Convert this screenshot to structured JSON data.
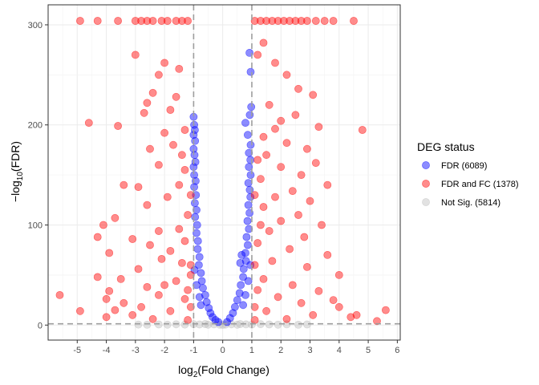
{
  "chart_data": {
    "type": "scatter",
    "title": "",
    "xlabel": {
      "base": "log",
      "sub": "2",
      "rest": "(Fold Change)"
    },
    "ylabel": {
      "pre": "−log",
      "sub": "10",
      "rest": "(FDR)"
    },
    "xlim": [
      -6.0,
      6.1
    ],
    "ylim": [
      -15,
      320
    ],
    "x_ticks": [
      "-5",
      "-4",
      "-3",
      "-2",
      "-1",
      "0",
      "1",
      "2",
      "3",
      "4",
      "5",
      "6"
    ],
    "y_ticks": [
      "0",
      "100",
      "200",
      "300"
    ],
    "grid": true,
    "reference_lines": {
      "vertical": [
        -1,
        1
      ],
      "horizontal": [
        1.3
      ]
    },
    "legend": {
      "title": "DEG status",
      "position": "right",
      "entries": [
        {
          "label": "FDR (6089)",
          "color": "#0000FF"
        },
        {
          "label": "FDR and FC (1378)",
          "color": "#FF0000"
        },
        {
          "label": "Not Sig. (5814)",
          "color": "#BEBEBE"
        }
      ]
    },
    "series": [
      {
        "name": "Not Sig. (5814)",
        "color": "#BEBEBE",
        "points": [
          [
            -2.6,
            0.3
          ],
          [
            -2.2,
            0.6
          ],
          [
            -1.9,
            0.4
          ],
          [
            -1.6,
            0.8
          ],
          [
            -1.3,
            0.5
          ],
          [
            -1.0,
            0.9
          ],
          [
            -0.8,
            0.6
          ],
          [
            -0.5,
            0.4
          ],
          [
            -0.3,
            0.7
          ],
          [
            -0.1,
            0.3
          ],
          [
            0.1,
            0.5
          ],
          [
            0.3,
            0.8
          ],
          [
            0.5,
            0.4
          ],
          [
            0.8,
            0.7
          ],
          [
            1.0,
            0.5
          ],
          [
            1.3,
            0.9
          ],
          [
            1.6,
            0.6
          ],
          [
            1.9,
            0.4
          ],
          [
            2.2,
            0.7
          ],
          [
            2.6,
            0.3
          ],
          [
            2.9,
            0.6
          ],
          [
            -2.9,
            0.5
          ],
          [
            0.0,
            0.2
          ],
          [
            -0.6,
            1.0
          ],
          [
            0.6,
            1.0
          ]
        ]
      },
      {
        "name": "FDR (6089)",
        "color": "#0000FF",
        "points": [
          [
            -1.0,
            208
          ],
          [
            -0.98,
            200
          ],
          [
            -0.96,
            195
          ],
          [
            -1.0,
            190
          ],
          [
            -0.95,
            184
          ],
          [
            -1.0,
            176
          ],
          [
            -0.97,
            170
          ],
          [
            -0.94,
            163
          ],
          [
            -1.0,
            158
          ],
          [
            -0.98,
            150
          ],
          [
            -0.93,
            144
          ],
          [
            -0.98,
            138
          ],
          [
            -0.92,
            130
          ],
          [
            -0.96,
            122
          ],
          [
            -0.9,
            115
          ],
          [
            -0.95,
            108
          ],
          [
            -0.88,
            100
          ],
          [
            -0.9,
            92
          ],
          [
            -0.85,
            84
          ],
          [
            -0.86,
            76
          ],
          [
            -0.8,
            68
          ],
          [
            -0.82,
            60
          ],
          [
            -0.75,
            52
          ],
          [
            -0.72,
            44
          ],
          [
            -0.68,
            37
          ],
          [
            -0.6,
            30
          ],
          [
            -0.55,
            23
          ],
          [
            -0.48,
            17
          ],
          [
            -0.42,
            12
          ],
          [
            -0.35,
            8
          ],
          [
            -0.25,
            5
          ],
          [
            -0.15,
            3
          ],
          [
            -0.97,
            55
          ],
          [
            -0.9,
            40
          ],
          [
            -0.8,
            28
          ],
          [
            -0.75,
            20
          ],
          [
            0.92,
            272
          ],
          [
            0.96,
            253
          ],
          [
            0.98,
            218
          ],
          [
            0.93,
            210
          ],
          [
            0.78,
            202
          ],
          [
            0.86,
            190
          ],
          [
            0.96,
            180
          ],
          [
            0.9,
            172
          ],
          [
            0.95,
            165
          ],
          [
            0.9,
            158
          ],
          [
            0.96,
            150
          ],
          [
            0.88,
            142
          ],
          [
            0.93,
            135
          ],
          [
            0.95,
            128
          ],
          [
            0.88,
            120
          ],
          [
            0.92,
            112
          ],
          [
            0.85,
            104
          ],
          [
            0.9,
            96
          ],
          [
            0.82,
            88
          ],
          [
            0.86,
            80
          ],
          [
            0.78,
            72
          ],
          [
            0.8,
            64
          ],
          [
            0.72,
            56
          ],
          [
            0.7,
            48
          ],
          [
            0.62,
            40
          ],
          [
            0.58,
            32
          ],
          [
            0.5,
            25
          ],
          [
            0.42,
            18
          ],
          [
            0.35,
            12
          ],
          [
            0.25,
            7
          ],
          [
            0.15,
            3
          ],
          [
            0.95,
            60
          ],
          [
            0.88,
            44
          ],
          [
            0.78,
            30
          ],
          [
            0.7,
            20
          ],
          [
            0.6,
            62
          ],
          [
            0.65,
            70
          ]
        ]
      },
      {
        "name": "FDR and FC (1378)",
        "color": "#FF0000",
        "points": [
          [
            -4.9,
            304
          ],
          [
            -4.3,
            304
          ],
          [
            -3.6,
            304
          ],
          [
            -3.0,
            304
          ],
          [
            -2.8,
            304
          ],
          [
            -2.6,
            304
          ],
          [
            -2.4,
            304
          ],
          [
            -2.1,
            304
          ],
          [
            -1.9,
            304
          ],
          [
            -1.6,
            304
          ],
          [
            -1.4,
            304
          ],
          [
            -1.2,
            304
          ],
          [
            1.1,
            304
          ],
          [
            1.3,
            304
          ],
          [
            1.5,
            304
          ],
          [
            1.7,
            304
          ],
          [
            1.9,
            304
          ],
          [
            2.1,
            304
          ],
          [
            2.3,
            304
          ],
          [
            2.5,
            304
          ],
          [
            2.7,
            304
          ],
          [
            2.9,
            304
          ],
          [
            3.2,
            304
          ],
          [
            3.5,
            304
          ],
          [
            3.8,
            304
          ],
          [
            4.5,
            304
          ],
          [
            -3.0,
            270
          ],
          [
            -2.0,
            262
          ],
          [
            -1.5,
            256
          ],
          [
            -2.2,
            250
          ],
          [
            -2.4,
            232
          ],
          [
            -2.6,
            222
          ],
          [
            -1.6,
            228
          ],
          [
            -1.8,
            215
          ],
          [
            -2.7,
            212
          ],
          [
            -4.6,
            202
          ],
          [
            -3.6,
            199
          ],
          [
            -2.0,
            192
          ],
          [
            -1.7,
            180
          ],
          [
            -2.5,
            176
          ],
          [
            -1.4,
            170
          ],
          [
            -2.2,
            160
          ],
          [
            -1.3,
            155
          ],
          [
            -3.4,
            140
          ],
          [
            -2.9,
            138
          ],
          [
            -1.9,
            128
          ],
          [
            -2.6,
            120
          ],
          [
            -3.7,
            107
          ],
          [
            -4.1,
            100
          ],
          [
            -4.3,
            88
          ],
          [
            -2.2,
            94
          ],
          [
            -1.5,
            96
          ],
          [
            -3.1,
            86
          ],
          [
            -2.5,
            80
          ],
          [
            -1.8,
            74
          ],
          [
            -3.9,
            72
          ],
          [
            -2.1,
            66
          ],
          [
            -1.4,
            62
          ],
          [
            -2.9,
            56
          ],
          [
            -4.3,
            48
          ],
          [
            -3.5,
            46
          ],
          [
            -1.6,
            44
          ],
          [
            -2.6,
            38
          ],
          [
            -3.9,
            34
          ],
          [
            -2.2,
            30
          ],
          [
            -1.3,
            26
          ],
          [
            -3.4,
            22
          ],
          [
            -4.0,
            26
          ],
          [
            -2.8,
            18
          ],
          [
            -1.8,
            14
          ],
          [
            -3.1,
            10
          ],
          [
            -4.0,
            8
          ],
          [
            -2.4,
            6
          ],
          [
            -1.2,
            5
          ],
          [
            -5.6,
            30
          ],
          [
            -4.9,
            14
          ],
          [
            -3.7,
            15
          ],
          [
            -2.0,
            40
          ],
          [
            -1.1,
            50
          ],
          [
            -1.3,
            84
          ],
          [
            -1.2,
            110
          ],
          [
            -1.1,
            130
          ],
          [
            -1.5,
            140
          ],
          [
            -1.3,
            195
          ],
          [
            -1.1,
            60
          ],
          [
            -1.2,
            35
          ],
          [
            -1.1,
            18
          ],
          [
            1.2,
            270
          ],
          [
            1.4,
            282
          ],
          [
            1.8,
            262
          ],
          [
            2.2,
            250
          ],
          [
            2.6,
            236
          ],
          [
            3.1,
            230
          ],
          [
            1.6,
            220
          ],
          [
            2.5,
            210
          ],
          [
            2.0,
            204
          ],
          [
            1.8,
            196
          ],
          [
            3.3,
            198
          ],
          [
            4.8,
            195
          ],
          [
            1.4,
            188
          ],
          [
            2.2,
            182
          ],
          [
            2.9,
            176
          ],
          [
            1.5,
            170
          ],
          [
            3.2,
            162
          ],
          [
            2.0,
            158
          ],
          [
            2.7,
            150
          ],
          [
            1.3,
            146
          ],
          [
            3.6,
            140
          ],
          [
            2.4,
            134
          ],
          [
            1.8,
            128
          ],
          [
            3.0,
            124
          ],
          [
            1.4,
            118
          ],
          [
            2.6,
            110
          ],
          [
            2.0,
            104
          ],
          [
            3.4,
            100
          ],
          [
            1.6,
            94
          ],
          [
            2.8,
            88
          ],
          [
            1.2,
            82
          ],
          [
            2.3,
            76
          ],
          [
            3.6,
            70
          ],
          [
            1.7,
            64
          ],
          [
            2.9,
            58
          ],
          [
            4.0,
            50
          ],
          [
            1.4,
            46
          ],
          [
            2.4,
            40
          ],
          [
            3.3,
            34
          ],
          [
            1.9,
            28
          ],
          [
            2.7,
            22
          ],
          [
            4.0,
            18
          ],
          [
            1.5,
            14
          ],
          [
            3.1,
            10
          ],
          [
            4.4,
            8
          ],
          [
            2.2,
            6
          ],
          [
            1.1,
            5
          ],
          [
            5.6,
            15
          ],
          [
            5.3,
            4
          ],
          [
            4.6,
            10
          ],
          [
            3.8,
            25
          ],
          [
            1.1,
            60
          ],
          [
            1.2,
            35
          ],
          [
            1.1,
            18
          ],
          [
            1.3,
            100
          ],
          [
            1.1,
            130
          ],
          [
            1.2,
            165
          ]
        ]
      }
    ]
  }
}
